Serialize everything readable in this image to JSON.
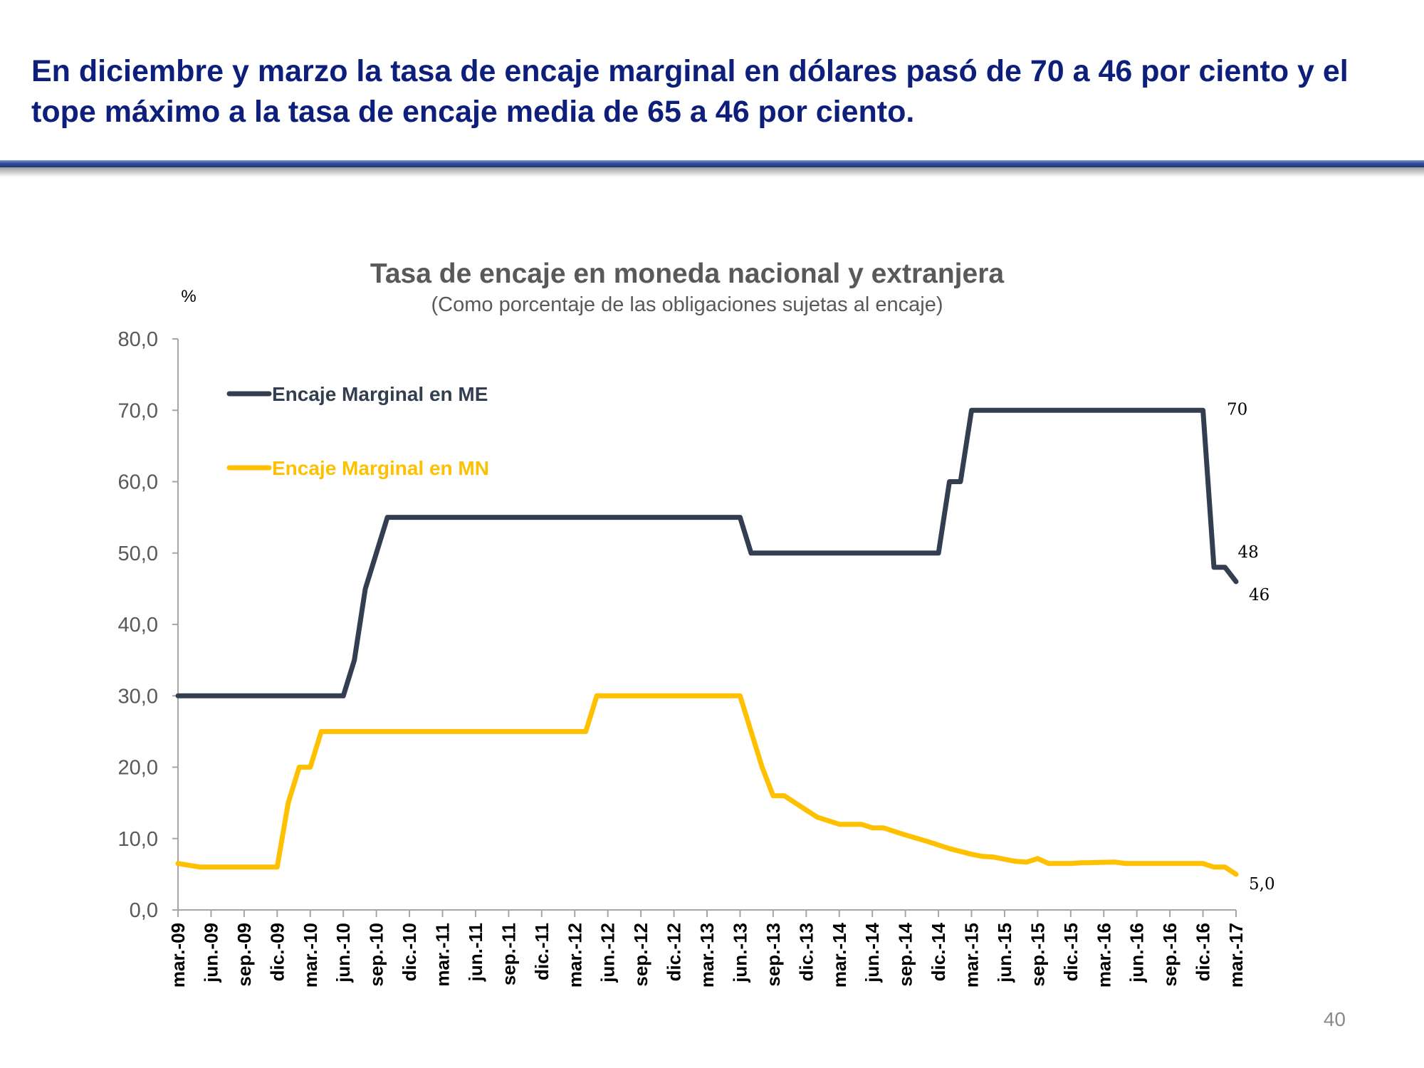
{
  "slide": {
    "title": "En diciembre y marzo la tasa de encaje marginal en dólares pasó de 70 a 46 por ciento y el tope máximo a la tasa de encaje media de 65 a 46 por ciento.",
    "page_number": "40"
  },
  "colors": {
    "title": "#0d1f7a",
    "series_me": "#333f50",
    "series_mn": "#ffc000",
    "axis_text": "#595959",
    "annotation": "#000000"
  },
  "chart_data": {
    "type": "line",
    "title": "Tasa de encaje en moneda nacional  y extranjera",
    "subtitle": "(Como  porcentaje de las obligaciones sujetas al encaje)",
    "unit_label": "%",
    "xlabel": "",
    "ylabel": "",
    "ylim": [
      0,
      80
    ],
    "yticks": [
      "0,0",
      "10,0",
      "20,0",
      "30,0",
      "40,0",
      "50,0",
      "60,0",
      "70,0",
      "80,0"
    ],
    "grid": false,
    "legend_position": "top-left",
    "x_tick_labels": [
      "mar.-09",
      "jun.-09",
      "sep.-09",
      "dic.-09",
      "mar.-10",
      "jun.-10",
      "sep.-10",
      "dic.-10",
      "mar.-11",
      "jun.-11",
      "sep.-11",
      "dic.-11",
      "mar.-12",
      "jun.-12",
      "sep.-12",
      "dic.-12",
      "mar.-13",
      "jun.-13",
      "sep.-13",
      "dic.-13",
      "mar.-14",
      "jun.-14",
      "sep.-14",
      "dic.-14",
      "mar.-15",
      "jun.-15",
      "sep.-15",
      "dic.-15",
      "mar.-16",
      "jun.-16",
      "sep.-16",
      "dic.-16",
      "mar.-17"
    ],
    "series": [
      {
        "name": "Encaje Marginal en ME",
        "color": "#333f50",
        "points": [
          [
            "mar.-09",
            30
          ],
          [
            "jun.-10",
            30
          ],
          [
            "jul.-10",
            35
          ],
          [
            "ago.-10",
            45
          ],
          [
            "sep.-10",
            50
          ],
          [
            "oct.-10",
            55
          ],
          [
            "jun.-13",
            55
          ],
          [
            "jul.-13",
            50
          ],
          [
            "dic.-14",
            50
          ],
          [
            "ene.-15",
            60
          ],
          [
            "feb.-15",
            60
          ],
          [
            "mar.-15",
            70
          ],
          [
            "dic.-16",
            70
          ],
          [
            "ene.-17",
            48
          ],
          [
            "feb.-17",
            48
          ],
          [
            "mar.-17",
            46
          ]
        ]
      },
      {
        "name": "Encaje Marginal en MN",
        "color": "#ffc000",
        "points": [
          [
            "mar.-09",
            6.5
          ],
          [
            "may.-09",
            6
          ],
          [
            "nov.-09",
            6
          ],
          [
            "dic.-09",
            6
          ],
          [
            "ene.-10",
            15
          ],
          [
            "feb.-10",
            20
          ],
          [
            "mar.-10",
            20
          ],
          [
            "abr.-10",
            25
          ],
          [
            "abr.-12",
            25
          ],
          [
            "may.-12",
            30
          ],
          [
            "jun.-13",
            30
          ],
          [
            "jul.-13",
            25
          ],
          [
            "ago.-13",
            20
          ],
          [
            "sep.-13",
            16
          ],
          [
            "oct.-13",
            16
          ],
          [
            "nov.-13",
            15
          ],
          [
            "dic.-13",
            14
          ],
          [
            "ene.-14",
            13
          ],
          [
            "feb.-14",
            12.5
          ],
          [
            "mar.-14",
            12
          ],
          [
            "may.-14",
            12
          ],
          [
            "jun.-14",
            11.5
          ],
          [
            "jul.-14",
            11.5
          ],
          [
            "sep.-14",
            10.5
          ],
          [
            "nov.-14",
            9.6
          ],
          [
            "ene.-15",
            8.6
          ],
          [
            "mar.-15",
            7.8
          ],
          [
            "abr.-15",
            7.5
          ],
          [
            "may.-15",
            7.4
          ],
          [
            "jul.-15",
            6.8
          ],
          [
            "ago.-15",
            6.7
          ],
          [
            "sep.-15",
            7.2
          ],
          [
            "oct.-15",
            6.5
          ],
          [
            "dic.-15",
            6.5
          ],
          [
            "ene.-16",
            6.6
          ],
          [
            "abr.-16",
            6.7
          ],
          [
            "may.-16",
            6.5
          ],
          [
            "dic.-16",
            6.5
          ],
          [
            "ene.-17",
            6
          ],
          [
            "feb.-17",
            6
          ],
          [
            "mar.-17",
            5
          ]
        ]
      }
    ],
    "annotations": [
      {
        "text": "70",
        "x": "ene.-17",
        "y": 70
      },
      {
        "text": "48",
        "x": "feb.-17",
        "y": 50
      },
      {
        "text": "46",
        "x": "mar.-17",
        "y": 44
      },
      {
        "text": "5,0",
        "x": "mar.-17",
        "y": 3.5
      }
    ]
  }
}
